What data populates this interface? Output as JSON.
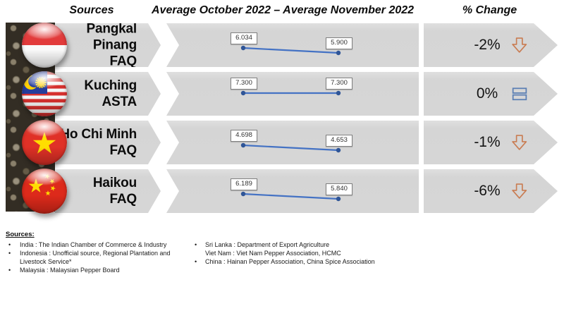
{
  "header": {
    "sources": "Sources",
    "period": "Average October 2022 – Average November 2022",
    "change": "% Change"
  },
  "chart_data": {
    "type": "line",
    "x": [
      "Average October 2022",
      "Average November 2022"
    ],
    "series": [
      {
        "name": "Pangkal Pinang FAQ",
        "values": [
          6.034,
          5.9
        ],
        "labels": [
          "6.034",
          "5.900"
        ]
      },
      {
        "name": "Kuching ASTA",
        "values": [
          7.3,
          7.3
        ],
        "labels": [
          "7.300",
          "7.300"
        ]
      },
      {
        "name": "Ho Chi Minh FAQ",
        "values": [
          4.698,
          4.653
        ],
        "labels": [
          "4.698",
          "4.653"
        ]
      },
      {
        "name": "Haikou FAQ",
        "values": [
          6.189,
          5.84
        ],
        "labels": [
          "6.189",
          "5.840"
        ]
      }
    ],
    "line_color": "#4472c4",
    "marker_color": "#2f5597",
    "legend": "none",
    "grid": false
  },
  "rows": [
    {
      "market": "Pangkal Pinang",
      "grade": "FAQ",
      "flag": "indonesia",
      "change": "-2%",
      "trend": "down"
    },
    {
      "market": "Kuching",
      "grade": "ASTA",
      "flag": "malaysia",
      "change": "0%",
      "trend": "equal"
    },
    {
      "market": "Ho Chi Minh",
      "grade": "FAQ",
      "flag": "vietnam",
      "change": "-1%",
      "trend": "down"
    },
    {
      "market": "Haikou",
      "grade": "FAQ",
      "flag": "china",
      "change": "-6%",
      "trend": "down"
    }
  ],
  "footer": {
    "title": "Sources:",
    "left": [
      {
        "bullet": "•",
        "text": "India : The Indian Chamber of Commerce & Industry"
      },
      {
        "bullet": "•",
        "text": "Indonesia : Unofficial source, Regional Plantation and Livestock Service*"
      },
      {
        "bullet": "•",
        "text": "Malaysia : Malaysian Pepper Board"
      }
    ],
    "right": [
      {
        "bullet": "•",
        "text": "Sri Lanka : Department of Export Agriculture"
      },
      {
        "bullet": "",
        "text": "Viet Nam : Viet Nam Pepper Association, HCMC"
      },
      {
        "bullet": "•",
        "text": "China : Hainan Pepper Association, China Spice Association"
      }
    ]
  },
  "colors": {
    "band": "#d6d6d6",
    "down_arrow": "#c97c52",
    "equal_icon": "#5b7fb4"
  }
}
